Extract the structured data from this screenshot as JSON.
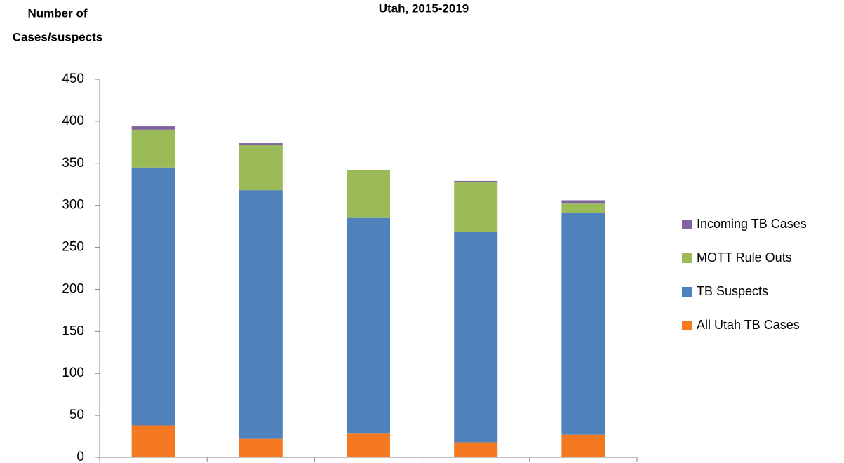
{
  "chart_data": {
    "type": "stacked_bar",
    "title": "Utah, 2015-2019",
    "y_label": [
      "Number of",
      "Cases/suspects"
    ],
    "categories": [
      null,
      null,
      null,
      null,
      null
    ],
    "series": [
      {
        "name": "All Utah TB Cases",
        "color": "#f47920",
        "values": [
          38,
          22,
          29,
          18,
          27
        ]
      },
      {
        "name": "TB Suspects",
        "color": "#4f81bd",
        "values": [
          307,
          296,
          256,
          250,
          264
        ]
      },
      {
        "name": "MOTT Rule Outs",
        "color": "#9bbb59",
        "values": [
          45,
          54,
          57,
          60,
          11
        ]
      },
      {
        "name": "Incoming TB Cases",
        "color": "#8064a2",
        "values": [
          4,
          2,
          0,
          1,
          4
        ]
      }
    ],
    "ylim": [
      0,
      450
    ],
    "yticks": [
      0,
      50,
      100,
      150,
      200,
      250,
      300,
      350,
      400,
      450
    ],
    "grid": false,
    "legend": "right"
  }
}
